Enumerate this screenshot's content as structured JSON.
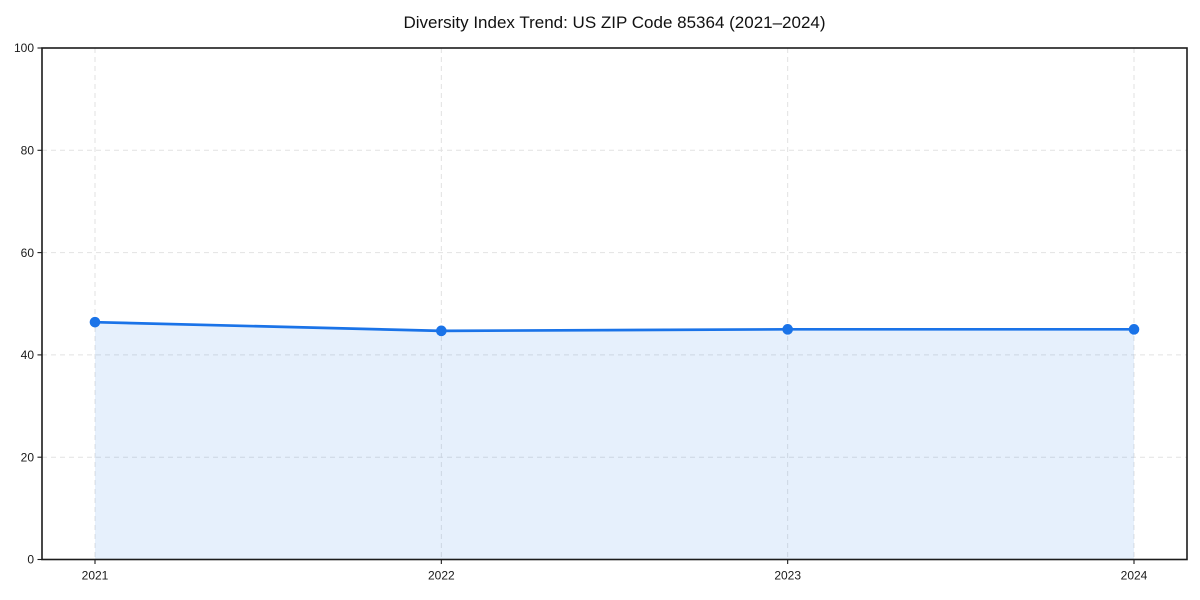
{
  "title": "Diversity Index Trend: US ZIP Code 85364 (2021–2024)",
  "chart_data": {
    "type": "line",
    "title": "Diversity Index Trend: US ZIP Code 85364 (2021–2024)",
    "x": [
      "2021",
      "2022",
      "2023",
      "2024"
    ],
    "series": [
      {
        "name": "Diversity Index",
        "values": [
          46.4,
          44.7,
          45.0,
          45.0
        ]
      }
    ],
    "xlabel": "",
    "ylabel": "",
    "ylim": [
      0,
      100
    ],
    "yticks": [
      0,
      20,
      40,
      60,
      80,
      100
    ],
    "grid": true,
    "grid_style": "dashed",
    "legend_position": "none",
    "colors": {
      "line": "#1a73e8",
      "marker": "#1a73e8",
      "area_fill": "rgba(26,115,232,0.11)",
      "gridline": "#e2e2e2",
      "spine": "#1c1c1c",
      "tick_label": "#1a1a1a",
      "background": "#ffffff"
    }
  }
}
